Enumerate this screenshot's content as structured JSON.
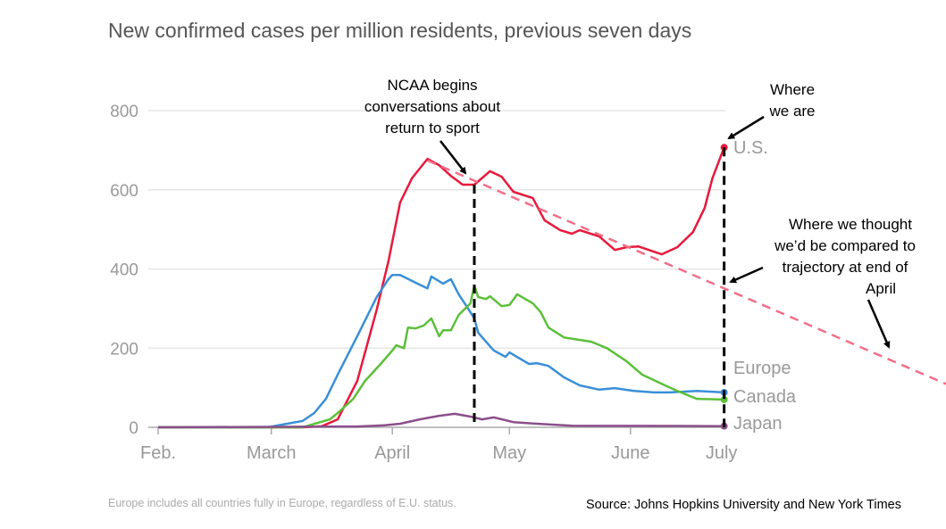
{
  "chart_data": {
    "type": "line",
    "title": "New confirmed cases per million residents, previous seven days",
    "xlabel": "",
    "ylabel": "",
    "ylim": [
      0,
      800
    ],
    "yticks": [
      0,
      200,
      400,
      600,
      800
    ],
    "grid": true,
    "xticks": [
      {
        "label": "Feb.",
        "date": "02-01",
        "mark": true
      },
      {
        "label": "March",
        "date": "03-01",
        "mark": true
      },
      {
        "label": "April",
        "date": "04-01",
        "mark": true
      },
      {
        "label": "May",
        "date": "05-01",
        "mark": true
      },
      {
        "label": "June",
        "date": "06-01",
        "mark": true
      },
      {
        "label": "July",
        "date": "06-25",
        "mark": false
      }
    ],
    "series": [
      {
        "name": "U.S.",
        "color": "#e8193c",
        "x": [
          "02-01",
          "03-09",
          "03-14",
          "03-18",
          "03-23",
          "03-28",
          "03-31",
          "04-03",
          "04-06",
          "04-10",
          "04-13",
          "04-16",
          "04-19",
          "04-22",
          "04-26",
          "04-29",
          "05-02",
          "05-07",
          "05-10",
          "05-14",
          "05-17",
          "05-19",
          "05-24",
          "05-28",
          "05-31",
          "06-03",
          "06-09",
          "06-13",
          "06-17",
          "06-20",
          "06-22",
          "06-25"
        ],
        "y": [
          0,
          0,
          3,
          20,
          117,
          297,
          419,
          568,
          629,
          678,
          662,
          635,
          613,
          613,
          647,
          633,
          595,
          579,
          523,
          498,
          489,
          498,
          482,
          448,
          455,
          457,
          437,
          455,
          493,
          554,
          629,
          707
        ]
      },
      {
        "name": "Europe",
        "color": "#3a8fd8",
        "x": [
          "02-01",
          "02-29",
          "03-09",
          "03-12",
          "03-15",
          "03-18",
          "03-23",
          "03-28",
          "03-31",
          "04-01",
          "04-03",
          "04-07",
          "04-10",
          "04-11",
          "04-14",
          "04-16",
          "04-18",
          "04-20",
          "04-22",
          "04-23",
          "04-25",
          "04-27",
          "04-30",
          "05-01",
          "05-06",
          "05-08",
          "05-11",
          "05-15",
          "05-19",
          "05-24",
          "05-28",
          "06-02",
          "06-07",
          "06-11",
          "06-18",
          "06-25"
        ],
        "y": [
          0,
          0,
          16,
          36,
          72,
          133,
          230,
          329,
          374,
          385,
          385,
          365,
          351,
          381,
          363,
          374,
          336,
          306,
          275,
          239,
          216,
          194,
          178,
          189,
          160,
          162,
          155,
          126,
          106,
          95,
          99,
          92,
          88,
          88,
          92,
          88
        ]
      },
      {
        "name": "Canada",
        "color": "#5cbf3a",
        "x": [
          "02-01",
          "03-09",
          "03-16",
          "03-18",
          "03-22",
          "03-25",
          "03-29",
          "04-01",
          "04-02",
          "04-04",
          "04-05",
          "04-07",
          "04-09",
          "04-11",
          "04-13",
          "04-14",
          "04-16",
          "04-18",
          "04-21",
          "04-22",
          "04-23",
          "04-25",
          "04-26",
          "04-29",
          "05-01",
          "05-03",
          "05-07",
          "05-09",
          "05-11",
          "05-15",
          "05-22",
          "05-26",
          "05-31",
          "06-04",
          "06-09",
          "06-13",
          "06-18",
          "06-25"
        ],
        "y": [
          0,
          0,
          20,
          36,
          72,
          117,
          160,
          194,
          207,
          200,
          252,
          250,
          257,
          275,
          230,
          245,
          245,
          284,
          313,
          358,
          329,
          324,
          331,
          306,
          309,
          336,
          313,
          291,
          252,
          227,
          216,
          200,
          167,
          133,
          110,
          92,
          72,
          70
        ]
      },
      {
        "name": "Japan",
        "color": "#8b4f8b",
        "x": [
          "02-01",
          "03-23",
          "03-30",
          "04-03",
          "04-08",
          "04-13",
          "04-17",
          "04-21",
          "04-24",
          "04-27",
          "05-02",
          "05-08",
          "05-17",
          "06-25"
        ],
        "y": [
          0,
          2,
          5,
          9,
          20,
          29,
          34,
          27,
          20,
          25,
          13,
          9,
          4,
          3
        ]
      }
    ],
    "trend_line": {
      "color": "#f07088",
      "x": [
        "04-10",
        "06-25"
      ],
      "y": [
        674,
        351
      ]
    },
    "markers": [
      {
        "date": "04-22",
        "from": 613,
        "to": 0
      },
      {
        "date": "06-25",
        "from": 707,
        "to": 0
      }
    ],
    "annotations": {
      "ncaa": [
        "NCAA begins",
        "conversations about",
        "return to sport"
      ],
      "where_we_are": [
        "Where",
        "we are"
      ],
      "where_we_thought": [
        "Where we thought",
        "we’d be compared to",
        "trajectory at end of",
        "April"
      ]
    },
    "footnote": "Europe includes all countries fully in Europe, regardless of E.U. status.",
    "source": "Source: Johns Hopkins University and New York Times"
  }
}
